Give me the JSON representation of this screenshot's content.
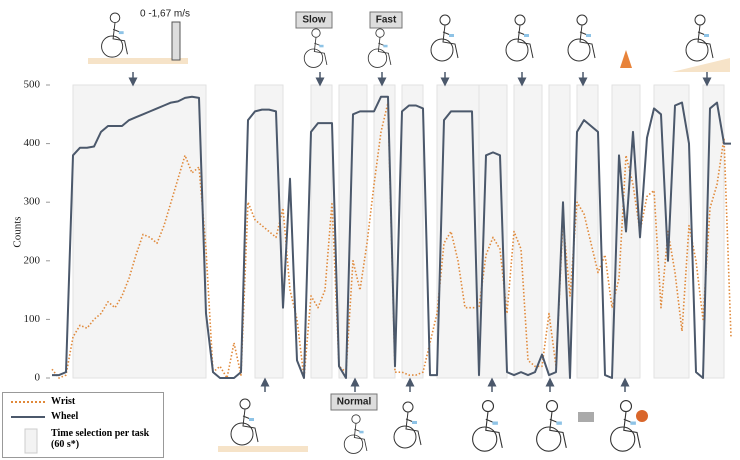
{
  "chart_data": {
    "type": "line",
    "y_label": "Counts",
    "ylim": [
      0,
      500
    ],
    "yticks": [
      0,
      100,
      200,
      300,
      400,
      500
    ],
    "categories": [
      null,
      null,
      null,
      null,
      null,
      null,
      null,
      null,
      null,
      null,
      null,
      null,
      null,
      null,
      null,
      null,
      null,
      null,
      null,
      null,
      null,
      null,
      null,
      null,
      null,
      null,
      null,
      null,
      null,
      null,
      null,
      null,
      null,
      null,
      null,
      null,
      null,
      null,
      null,
      null,
      null,
      null,
      null,
      null,
      null,
      null,
      null,
      null,
      null,
      null,
      null,
      null,
      null,
      null,
      null,
      null,
      null,
      null,
      null,
      null,
      null,
      null,
      null,
      null,
      null,
      null,
      null,
      null,
      null,
      null,
      null,
      null,
      null,
      null,
      null,
      null,
      null,
      null,
      null,
      null,
      null,
      null,
      null,
      null,
      null,
      null,
      null,
      null,
      null,
      null,
      null,
      null,
      null,
      null,
      null,
      null,
      null,
      null
    ],
    "series": [
      {
        "name": "Wrist",
        "color": "#e0893a",
        "dash": true,
        "values": [
          15,
          0,
          5,
          70,
          90,
          85,
          100,
          110,
          130,
          120,
          140,
          170,
          210,
          245,
          240,
          230,
          260,
          300,
          340,
          380,
          350,
          360,
          220,
          10,
          20,
          0,
          60,
          5,
          300,
          270,
          260,
          250,
          240,
          290,
          150,
          100,
          0,
          140,
          120,
          150,
          300,
          20,
          10,
          200,
          150,
          230,
          330,
          420,
          470,
          10,
          10,
          5,
          5,
          10,
          60,
          110,
          230,
          250,
          200,
          120,
          120,
          120,
          210,
          240,
          220,
          110,
          250,
          220,
          30,
          20,
          20,
          110,
          20,
          270,
          140,
          300,
          280,
          230,
          180,
          210,
          120,
          170,
          380,
          330,
          250,
          310,
          320,
          120,
          250,
          180,
          80,
          260,
          200,
          100,
          290,
          330,
          410,
          70
        ]
      },
      {
        "name": "Wheel",
        "color": "#4b586b",
        "dash": false,
        "values": [
          5,
          5,
          10,
          380,
          393,
          393,
          395,
          420,
          430,
          430,
          430,
          440,
          445,
          450,
          455,
          460,
          465,
          470,
          472,
          478,
          480,
          478,
          110,
          10,
          0,
          0,
          0,
          10,
          440,
          455,
          458,
          458,
          455,
          120,
          340,
          30,
          0,
          420,
          435,
          435,
          435,
          20,
          0,
          450,
          455,
          455,
          455,
          480,
          480,
          20,
          455,
          465,
          465,
          460,
          5,
          5,
          440,
          455,
          455,
          455,
          455,
          5,
          380,
          385,
          380,
          10,
          5,
          10,
          5,
          10,
          40,
          5,
          10,
          300,
          0,
          420,
          440,
          430,
          420,
          5,
          0,
          380,
          250,
          420,
          240,
          410,
          460,
          450,
          200,
          465,
          470,
          400,
          10,
          0,
          460,
          470,
          400,
          400
        ]
      }
    ],
    "shaded_ranges": [
      [
        3,
        22
      ],
      [
        29,
        33
      ],
      [
        37,
        40
      ],
      [
        41,
        45
      ],
      [
        46,
        49
      ],
      [
        50,
        53
      ],
      [
        55,
        61
      ],
      [
        61,
        65
      ],
      [
        66,
        70
      ],
      [
        71,
        74
      ],
      [
        75,
        78
      ],
      [
        80,
        84
      ],
      [
        86,
        91
      ],
      [
        93,
        96
      ]
    ],
    "band_label": "Time selection per task (60 s*)",
    "annotations": {
      "speed": "0 -1,67 m/s",
      "slow": "Slow",
      "fast": "Fast",
      "normal": "Normal"
    }
  }
}
